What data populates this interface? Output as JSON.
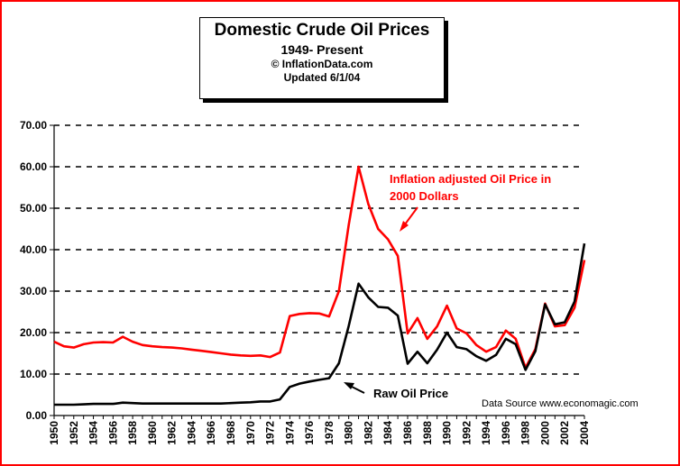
{
  "title": {
    "line1": "Domestic Crude Oil Prices",
    "line2": "1949- Present",
    "line3": "© InflationData.com",
    "line4": "Updated 6/1/04"
  },
  "annotations": {
    "inflation_line1": "Inflation adjusted Oil Price in",
    "inflation_line2": "2000 Dollars",
    "raw": "Raw Oil Price",
    "source": "Data Source www.economagic.com"
  },
  "colors": {
    "frame": "#ff0000",
    "inflation": "#ff0000",
    "raw": "#000000"
  },
  "chart_data": {
    "type": "line",
    "ylim": [
      0,
      70
    ],
    "xlim": [
      1950,
      2004
    ],
    "yticks": [
      "0.00",
      "10.00",
      "20.00",
      "30.00",
      "40.00",
      "50.00",
      "60.00",
      "70.00"
    ],
    "xticks": [
      "1950",
      "1952",
      "1954",
      "1956",
      "1958",
      "1960",
      "1962",
      "1964",
      "1966",
      "1968",
      "1970",
      "1972",
      "1974",
      "1976",
      "1978",
      "1980",
      "1982",
      "1984",
      "1986",
      "1988",
      "1990",
      "1992",
      "1994",
      "1996",
      "1998",
      "2000",
      "2002",
      "2004"
    ],
    "grid": "horizontal dashed",
    "x": [
      1950,
      1951,
      1952,
      1953,
      1954,
      1955,
      1956,
      1957,
      1958,
      1959,
      1960,
      1961,
      1962,
      1963,
      1964,
      1965,
      1966,
      1967,
      1968,
      1969,
      1970,
      1971,
      1972,
      1973,
      1974,
      1975,
      1976,
      1977,
      1978,
      1979,
      1980,
      1981,
      1982,
      1983,
      1984,
      1985,
      1986,
      1987,
      1988,
      1989,
      1990,
      1991,
      1992,
      1993,
      1994,
      1995,
      1996,
      1997,
      1998,
      1999,
      2000,
      2001,
      2002,
      2003,
      2004
    ],
    "series": [
      {
        "key": "inflation",
        "values": [
          17.8,
          16.7,
          16.4,
          17.2,
          17.6,
          17.7,
          17.6,
          19.0,
          17.8,
          17.0,
          16.7,
          16.5,
          16.4,
          16.2,
          15.9,
          15.6,
          15.3,
          15.0,
          14.7,
          14.5,
          14.4,
          14.5,
          14.1,
          15.2,
          24.0,
          24.5,
          24.7,
          24.6,
          23.9,
          30.0,
          46.0,
          60.0,
          51.0,
          45.0,
          42.5,
          38.5,
          19.8,
          23.5,
          18.5,
          21.5,
          26.5,
          21.0,
          19.8,
          17.0,
          15.4,
          16.5,
          20.5,
          18.5,
          11.5,
          16.0,
          27.0,
          21.5,
          21.8,
          26.0,
          37.5
        ]
      },
      {
        "key": "raw",
        "values": [
          2.6,
          2.6,
          2.6,
          2.7,
          2.8,
          2.8,
          2.8,
          3.1,
          3.0,
          2.9,
          2.9,
          2.9,
          2.9,
          2.9,
          2.9,
          2.9,
          2.9,
          2.9,
          3.0,
          3.1,
          3.2,
          3.4,
          3.4,
          3.9,
          6.9,
          7.7,
          8.2,
          8.6,
          9.0,
          12.6,
          21.6,
          31.8,
          28.5,
          26.2,
          26.0,
          24.1,
          12.5,
          15.4,
          12.6,
          15.9,
          20.0,
          16.5,
          16.0,
          14.3,
          13.2,
          14.6,
          18.5,
          17.2,
          11.0,
          15.5,
          26.8,
          22.0,
          22.5,
          27.5,
          41.5
        ]
      }
    ]
  }
}
